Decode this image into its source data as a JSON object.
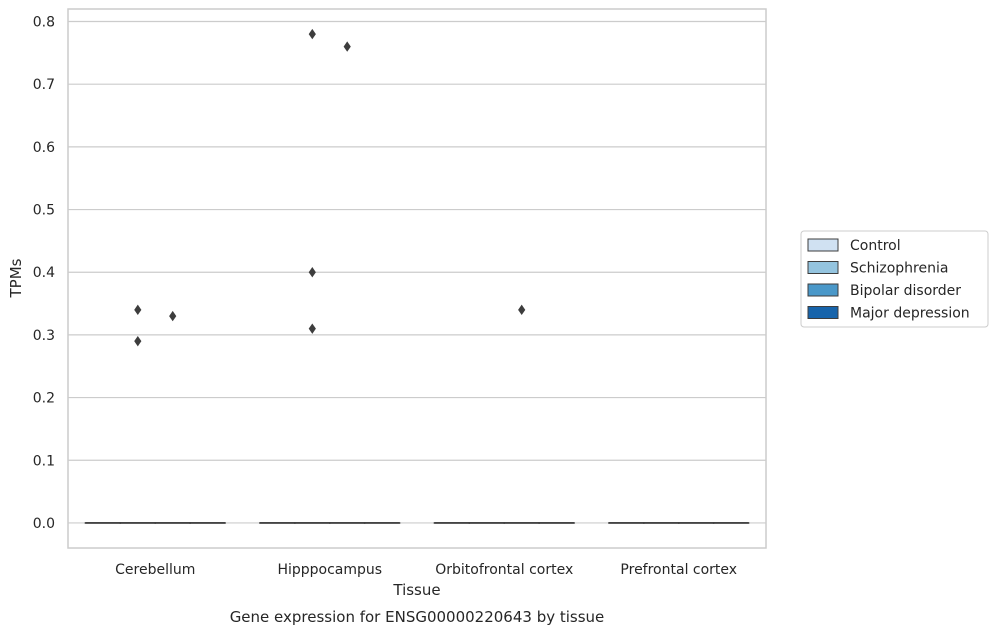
{
  "chart_data": {
    "type": "box",
    "title": "",
    "caption": "Gene expression for ENSG00000220643 by tissue",
    "xlabel": "Tissue",
    "ylabel": "TPMs",
    "categories": [
      "Cerebellum",
      "Hipppocampus",
      "Orbitofrontal cortex",
      "Prefrontal cortex"
    ],
    "ylim": [
      -0.04,
      0.82
    ],
    "yticks": [
      0.0,
      0.1,
      0.2,
      0.3,
      0.4,
      0.5,
      0.6,
      0.7,
      0.8
    ],
    "ytick_labels": [
      "0.0",
      "0.1",
      "0.2",
      "0.3",
      "0.4",
      "0.5",
      "0.6",
      "0.7",
      "0.8"
    ],
    "grid": "horizontal",
    "legend_position": "right",
    "series": [
      {
        "name": "Control",
        "color": "#d0e1f2",
        "boxes": [
          {
            "q1": 0,
            "median": 0,
            "q3": 0,
            "whisker_low": 0,
            "whisker_high": 0
          },
          {
            "q1": 0,
            "median": 0,
            "q3": 0,
            "whisker_low": 0,
            "whisker_high": 0
          },
          {
            "q1": 0,
            "median": 0,
            "q3": 0,
            "whisker_low": 0,
            "whisker_high": 0
          },
          {
            "q1": 0,
            "median": 0,
            "q3": 0,
            "whisker_low": 0,
            "whisker_high": 0
          }
        ],
        "outliers": [
          [],
          [],
          [],
          []
        ]
      },
      {
        "name": "Schizophrenia",
        "color": "#94c4df",
        "boxes": [
          {
            "q1": 0,
            "median": 0,
            "q3": 0,
            "whisker_low": 0,
            "whisker_high": 0
          },
          {
            "q1": 0,
            "median": 0,
            "q3": 0,
            "whisker_low": 0,
            "whisker_high": 0
          },
          {
            "q1": 0,
            "median": 0,
            "q3": 0,
            "whisker_low": 0,
            "whisker_high": 0
          },
          {
            "q1": 0,
            "median": 0,
            "q3": 0,
            "whisker_low": 0,
            "whisker_high": 0
          }
        ],
        "outliers": [
          [
            0.34,
            0.29
          ],
          [
            0.4,
            0.31,
            0.78
          ],
          [],
          []
        ]
      },
      {
        "name": "Bipolar disorder",
        "color": "#4a98c9",
        "boxes": [
          {
            "q1": 0,
            "median": 0,
            "q3": 0,
            "whisker_low": 0,
            "whisker_high": 0
          },
          {
            "q1": 0,
            "median": 0,
            "q3": 0,
            "whisker_low": 0,
            "whisker_high": 0
          },
          {
            "q1": 0,
            "median": 0,
            "q3": 0,
            "whisker_low": 0,
            "whisker_high": 0
          },
          {
            "q1": 0,
            "median": 0,
            "q3": 0,
            "whisker_low": 0,
            "whisker_high": 0
          }
        ],
        "outliers": [
          [
            0.33
          ],
          [
            0.76
          ],
          [
            0.34
          ],
          []
        ]
      },
      {
        "name": "Major depression",
        "color": "#1764ab",
        "boxes": [
          {
            "q1": 0,
            "median": 0,
            "q3": 0,
            "whisker_low": 0,
            "whisker_high": 0
          },
          {
            "q1": 0,
            "median": 0,
            "q3": 0,
            "whisker_low": 0,
            "whisker_high": 0
          },
          {
            "q1": 0,
            "median": 0,
            "q3": 0,
            "whisker_low": 0,
            "whisker_high": 0
          },
          {
            "q1": 0,
            "median": 0,
            "q3": 0,
            "whisker_low": 0,
            "whisker_high": 0
          }
        ],
        "outliers": [
          [],
          [],
          [],
          []
        ]
      }
    ],
    "colors": {
      "grid": "#cccccc",
      "axes": "#cccccc",
      "box_edge": "#3d3d3d",
      "outlier": "#3d3d3d"
    }
  }
}
